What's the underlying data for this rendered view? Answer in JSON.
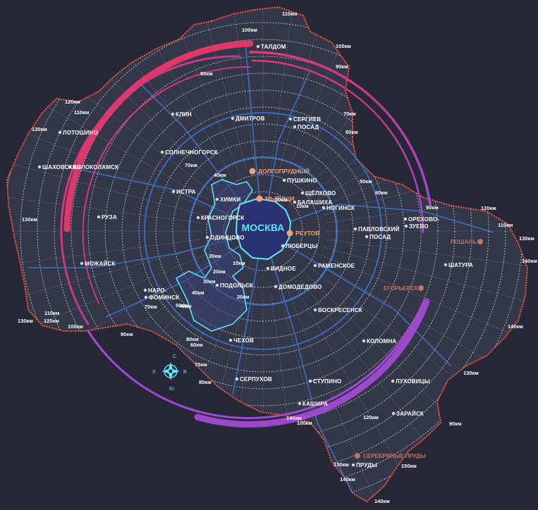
{
  "center_label": "МОСКВА",
  "colors": {
    "background": "#262838",
    "region_fill": "#34374a",
    "border": "#ff5a36",
    "ring_line": "#ffffff",
    "road": "#3a7ad8",
    "moscow": "#2b3270",
    "moscow_outline": "#5ee9ff",
    "highlight": "#f2a36c",
    "arc_start": "#e8386b",
    "arc_end": "#a24ad4"
  },
  "compass": {
    "icon": "compass-rose-icon",
    "north": "С",
    "south": "Ю",
    "west": "З",
    "east": "В"
  },
  "highlighted_cities": [
    {
      "name": "ДОЛГОПРУДНЫЙ"
    },
    {
      "name": "МЫТИЩИ"
    },
    {
      "name": "РЕУТОВ"
    }
  ],
  "remote_cities": [
    {
      "name": "РОШАЛЬ"
    },
    {
      "name": "ЕГОРЬЕВСК"
    },
    {
      "name": "СЕРЕБРЯНЫЕ ПРУДЫ"
    }
  ],
  "cities": [
    {
      "name": "ТАЛДОМ"
    },
    {
      "name": "ДМИТРОВ"
    },
    {
      "name": "СЕРГИЕВ"
    },
    {
      "name": "ПОСАД"
    },
    {
      "name": "КЛИН"
    },
    {
      "name": "СОЛНЕЧНОГОРСК"
    },
    {
      "name": "ЛОТОШИНО"
    },
    {
      "name": "ШАХОВСКАЯ"
    },
    {
      "name": "ВОЛОКОЛАМСК"
    },
    {
      "name": "ИСТРА"
    },
    {
      "name": "ПУШКИНО"
    },
    {
      "name": "ХИМКИ"
    },
    {
      "name": "ЩЁЛКОВО"
    },
    {
      "name": "БАЛАШИХА"
    },
    {
      "name": "НОГИНСК"
    },
    {
      "name": "КРАСНОГОРСК"
    },
    {
      "name": "РУЗА"
    },
    {
      "name": "ОДИНЦОВО"
    },
    {
      "name": "ПАВЛОВСКИЙ"
    },
    {
      "name": "ПОСАД"
    },
    {
      "name": "ЛЮБЕРЦЫ"
    },
    {
      "name": "ОРЕХОВО-"
    },
    {
      "name": "ЗУЕВО"
    },
    {
      "name": "МОЖАЙСК"
    },
    {
      "name": "РАМЕНСКОЕ"
    },
    {
      "name": "ВИДНОЕ"
    },
    {
      "name": "ШАТУРА"
    },
    {
      "name": "НАРО-"
    },
    {
      "name": "ФОМИНСК"
    },
    {
      "name": "ПОДОЛЬСК"
    },
    {
      "name": "ДОМОДЕДОВО"
    },
    {
      "name": "ВОСКРЕСЕНСК"
    },
    {
      "name": "ЧЕХОВ"
    },
    {
      "name": "КОЛОМНА"
    },
    {
      "name": "СЕРПУХОВ"
    },
    {
      "name": "ЛУХОВИЦЫ"
    },
    {
      "name": "СТУПИНО"
    },
    {
      "name": "КАШИРА"
    },
    {
      "name": "ЗАРАЙСК"
    },
    {
      "name": "ПРУДЫ"
    }
  ],
  "distance_labels": [
    "110км",
    "100км",
    "100км",
    "90км",
    "80км",
    "120км",
    "130км",
    "110км",
    "70км",
    "60км",
    "130км",
    "70км",
    "50км",
    "60км",
    "40км",
    "10км",
    "10км",
    "90км",
    "120км",
    "110км",
    "30км",
    "10км",
    "20км",
    "30км",
    "20км",
    "130км",
    "40км",
    "40км",
    "140км",
    "50км",
    "70км",
    "100км",
    "110км",
    "120км",
    "130км",
    "90км",
    "80км",
    "60км",
    "140км",
    "70км",
    "130км",
    "80км",
    "100км",
    "90км",
    "140км",
    "120км",
    "130км",
    "150км",
    "140км",
    "140км"
  ]
}
